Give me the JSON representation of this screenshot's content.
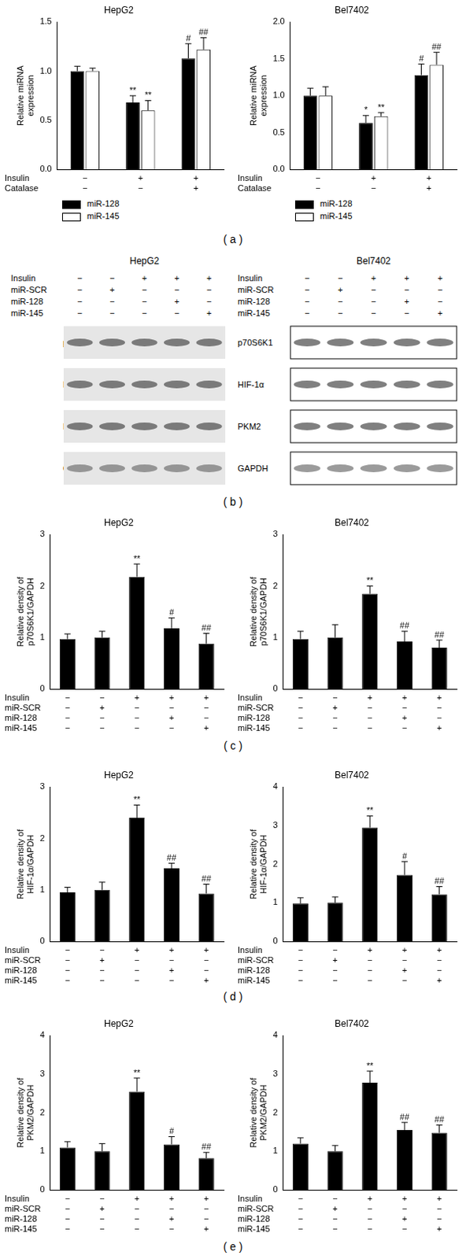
{
  "chart_data": [
    {
      "type": "bar",
      "title": "HepG2",
      "ylabel": [
        "Relative miRNA",
        "expression"
      ],
      "categories": [
        null,
        null,
        null
      ],
      "ylim": [
        0,
        1.5
      ],
      "yticks": [
        {
          "value": 0,
          "label": "0.0"
        },
        {
          "value": 0.5,
          "label": "0.5"
        },
        {
          "value": 1,
          "label": "1.0"
        },
        {
          "value": 1.5,
          "label": "1.5"
        }
      ],
      "grid": false,
      "legend": "bottom",
      "series": [
        {
          "name": "miR-128",
          "color": "#000000",
          "values": [
            1.0,
            0.68,
            1.13
          ],
          "errors": [
            0.05,
            0.07,
            0.15
          ],
          "annotations": [
            null,
            "**",
            "#"
          ]
        },
        {
          "name": "miR-145",
          "color": "#ffffff",
          "values": [
            1.0,
            0.6,
            1.22
          ],
          "errors": [
            0.03,
            0.1,
            0.12
          ],
          "annotations": [
            null,
            "**",
            "##"
          ]
        }
      ],
      "conditions": [
        {
          "label": "Insulin",
          "marks": [
            "−",
            "+",
            "+"
          ]
        },
        {
          "label": "Catalase",
          "marks": [
            "−",
            "−",
            "+"
          ]
        }
      ]
    },
    {
      "type": "bar",
      "title": "Bel7402",
      "ylabel": [
        "Relative miRNA",
        "expression"
      ],
      "categories": [
        null,
        null,
        null
      ],
      "ylim": [
        0,
        2
      ],
      "yticks": [
        {
          "value": 0,
          "label": "0.0"
        },
        {
          "value": 0.5,
          "label": "0.5"
        },
        {
          "value": 1,
          "label": "1.0"
        },
        {
          "value": 1.5,
          "label": "1.5"
        },
        {
          "value": 2,
          "label": "2.0"
        }
      ],
      "grid": false,
      "legend": "bottom",
      "series": [
        {
          "name": "miR-128",
          "color": "#000000",
          "values": [
            1.0,
            0.63,
            1.28
          ],
          "errors": [
            0.1,
            0.1,
            0.15
          ],
          "annotations": [
            null,
            "*",
            "#"
          ]
        },
        {
          "name": "miR-145",
          "color": "#ffffff",
          "values": [
            1.0,
            0.72,
            1.42
          ],
          "errors": [
            0.12,
            0.05,
            0.17
          ],
          "annotations": [
            null,
            "**",
            "##"
          ]
        }
      ],
      "conditions": [
        {
          "label": "Insulin",
          "marks": [
            "−",
            "+",
            "+"
          ]
        },
        {
          "label": "Catalase",
          "marks": [
            "−",
            "−",
            "+"
          ]
        }
      ]
    },
    {
      "type": "bar",
      "title": "HepG2",
      "ylabel": [
        "Relative density of",
        "p70S6K1/GAPDH"
      ],
      "categories": [
        null,
        null,
        null,
        null,
        null
      ],
      "ylim": [
        0,
        3
      ],
      "yticks": [
        0,
        1,
        2,
        3
      ],
      "grid": false,
      "color": "#000000",
      "values": [
        0.97,
        1.0,
        2.18,
        1.18,
        0.88
      ],
      "errors": [
        0.1,
        0.12,
        0.25,
        0.2,
        0.2
      ],
      "annotations": [
        null,
        null,
        "**",
        "#",
        "##"
      ],
      "conditions": [
        {
          "label": "Insulin",
          "marks": [
            "−",
            "−",
            "+",
            "+",
            "+"
          ]
        },
        {
          "label": "miR-SCR",
          "marks": [
            "−",
            "+",
            "−",
            "−",
            "−"
          ]
        },
        {
          "label": "miR-128",
          "marks": [
            "−",
            "−",
            "−",
            "+",
            "−"
          ]
        },
        {
          "label": "miR-145",
          "marks": [
            "−",
            "−",
            "−",
            "−",
            "+"
          ]
        }
      ]
    },
    {
      "type": "bar",
      "title": "Bel7402",
      "ylabel": [
        "Relative density of",
        "p70S6K1/GAPDH"
      ],
      "categories": [
        null,
        null,
        null,
        null,
        null
      ],
      "ylim": [
        0,
        3
      ],
      "yticks": [
        0,
        1,
        2,
        3
      ],
      "grid": false,
      "color": "#000000",
      "values": [
        0.97,
        1.0,
        1.85,
        0.92,
        0.8
      ],
      "errors": [
        0.15,
        0.25,
        0.15,
        0.2,
        0.15
      ],
      "annotations": [
        null,
        null,
        "**",
        "##",
        "##"
      ],
      "conditions": [
        {
          "label": "Insulin",
          "marks": [
            "−",
            "−",
            "+",
            "+",
            "+"
          ]
        },
        {
          "label": "miR-SCR",
          "marks": [
            "−",
            "+",
            "−",
            "−",
            "−"
          ]
        },
        {
          "label": "miR-128",
          "marks": [
            "−",
            "−",
            "−",
            "+",
            "−"
          ]
        },
        {
          "label": "miR-145",
          "marks": [
            "−",
            "−",
            "−",
            "−",
            "+"
          ]
        }
      ]
    },
    {
      "type": "bar",
      "title": "HepG2",
      "ylabel": [
        "Relative density of",
        "HIF-1α/GAPDH"
      ],
      "categories": [
        null,
        null,
        null,
        null,
        null
      ],
      "ylim": [
        0,
        3
      ],
      "yticks": [
        0,
        1,
        2,
        3
      ],
      "grid": false,
      "color": "#000000",
      "values": [
        0.95,
        1.0,
        2.4,
        1.42,
        0.93
      ],
      "errors": [
        0.1,
        0.15,
        0.25,
        0.1,
        0.18
      ],
      "annotations": [
        null,
        null,
        "**",
        "##",
        "##"
      ],
      "conditions": [
        {
          "label": "Insulin",
          "marks": [
            "−",
            "−",
            "+",
            "+",
            "+"
          ]
        },
        {
          "label": "miR-SCR",
          "marks": [
            "−",
            "+",
            "−",
            "−",
            "−"
          ]
        },
        {
          "label": "miR-128",
          "marks": [
            "−",
            "−",
            "−",
            "+",
            "−"
          ]
        },
        {
          "label": "miR-145",
          "marks": [
            "−",
            "−",
            "−",
            "−",
            "+"
          ]
        }
      ]
    },
    {
      "type": "bar",
      "title": "Bel7402",
      "ylabel": [
        "Relative density of",
        "HIF-1α/GAPDH"
      ],
      "categories": [
        null,
        null,
        null,
        null,
        null
      ],
      "ylim": [
        0,
        4
      ],
      "yticks": [
        0,
        1,
        2,
        3,
        4
      ],
      "grid": false,
      "color": "#000000",
      "values": [
        0.98,
        1.0,
        2.95,
        1.72,
        1.22
      ],
      "errors": [
        0.15,
        0.15,
        0.3,
        0.35,
        0.2
      ],
      "annotations": [
        null,
        null,
        "**",
        "#",
        "##"
      ],
      "conditions": [
        {
          "label": "Insulin",
          "marks": [
            "−",
            "−",
            "+",
            "+",
            "+"
          ]
        },
        {
          "label": "miR-SCR",
          "marks": [
            "−",
            "+",
            "−",
            "−",
            "−"
          ]
        },
        {
          "label": "miR-128",
          "marks": [
            "−",
            "−",
            "−",
            "+",
            "−"
          ]
        },
        {
          "label": "miR-145",
          "marks": [
            "−",
            "−",
            "−",
            "−",
            "+"
          ]
        }
      ]
    },
    {
      "type": "bar",
      "title": "HepG2",
      "ylabel": [
        "Relative density of",
        "PKM2/GAPDH"
      ],
      "categories": [
        null,
        null,
        null,
        null,
        null
      ],
      "ylim": [
        0,
        4
      ],
      "yticks": [
        0,
        1,
        2,
        3,
        4
      ],
      "grid": false,
      "color": "#000000",
      "values": [
        1.1,
        1.0,
        2.55,
        1.18,
        0.82
      ],
      "errors": [
        0.15,
        0.2,
        0.35,
        0.2,
        0.15
      ],
      "annotations": [
        null,
        null,
        "**",
        "#",
        "##"
      ],
      "conditions": [
        {
          "label": "Insulin",
          "marks": [
            "−",
            "−",
            "+",
            "+",
            "+"
          ]
        },
        {
          "label": "miR-SCR",
          "marks": [
            "−",
            "+",
            "−",
            "−",
            "−"
          ]
        },
        {
          "label": "miR-128",
          "marks": [
            "−",
            "−",
            "−",
            "+",
            "−"
          ]
        },
        {
          "label": "miR-145",
          "marks": [
            "−",
            "−",
            "−",
            "−",
            "+"
          ]
        }
      ]
    },
    {
      "type": "bar",
      "title": "Bel7402",
      "ylabel": [
        "Relative density of",
        "PKM2/GAPDH"
      ],
      "categories": [
        null,
        null,
        null,
        null,
        null
      ],
      "ylim": [
        0,
        4
      ],
      "yticks": [
        0,
        1,
        2,
        3,
        4
      ],
      "grid": false,
      "color": "#000000",
      "values": [
        1.2,
        1.0,
        2.78,
        1.55,
        1.48
      ],
      "errors": [
        0.15,
        0.15,
        0.3,
        0.2,
        0.2
      ],
      "annotations": [
        null,
        null,
        "**",
        "##",
        "##"
      ],
      "conditions": [
        {
          "label": "Insulin",
          "marks": [
            "−",
            "−",
            "+",
            "+",
            "+"
          ]
        },
        {
          "label": "miR-SCR",
          "marks": [
            "−",
            "+",
            "−",
            "−",
            "−"
          ]
        },
        {
          "label": "miR-128",
          "marks": [
            "−",
            "−",
            "−",
            "+",
            "−"
          ]
        },
        {
          "label": "miR-145",
          "marks": [
            "−",
            "−",
            "−",
            "−",
            "+"
          ]
        }
      ]
    }
  ],
  "blot": [
    {
      "title": "HepG2",
      "conditions": [
        {
          "label": "Insulin",
          "marks": [
            "−",
            "−",
            "+",
            "+",
            "+"
          ]
        },
        {
          "label": "miR-SCR",
          "marks": [
            "−",
            "+",
            "−",
            "−",
            "−"
          ]
        },
        {
          "label": "miR-128",
          "marks": [
            "−",
            "−",
            "−",
            "+",
            "−"
          ]
        },
        {
          "label": "miR-145",
          "marks": [
            "−",
            "−",
            "−",
            "−",
            "+"
          ]
        }
      ],
      "proteins": [
        "p70S6K1",
        "HIF-1α",
        "PKM2",
        "GAPDH"
      ]
    },
    {
      "title": "Bel7402",
      "conditions": [
        {
          "label": "Insulin",
          "marks": [
            "−",
            "−",
            "+",
            "+",
            "+"
          ]
        },
        {
          "label": "miR-SCR",
          "marks": [
            "−",
            "+",
            "−",
            "−",
            "−"
          ]
        },
        {
          "label": "miR-128",
          "marks": [
            "−",
            "−",
            "−",
            "+",
            "−"
          ]
        },
        {
          "label": "miR-145",
          "marks": [
            "−",
            "−",
            "−",
            "−",
            "+"
          ]
        }
      ],
      "proteins": [
        "p70S6K1",
        "HIF-1α",
        "PKM2",
        "GAPDH"
      ]
    }
  ],
  "panel_labels": [
    "( a )",
    "( b )",
    "( c )",
    "( d )",
    "( e )"
  ]
}
